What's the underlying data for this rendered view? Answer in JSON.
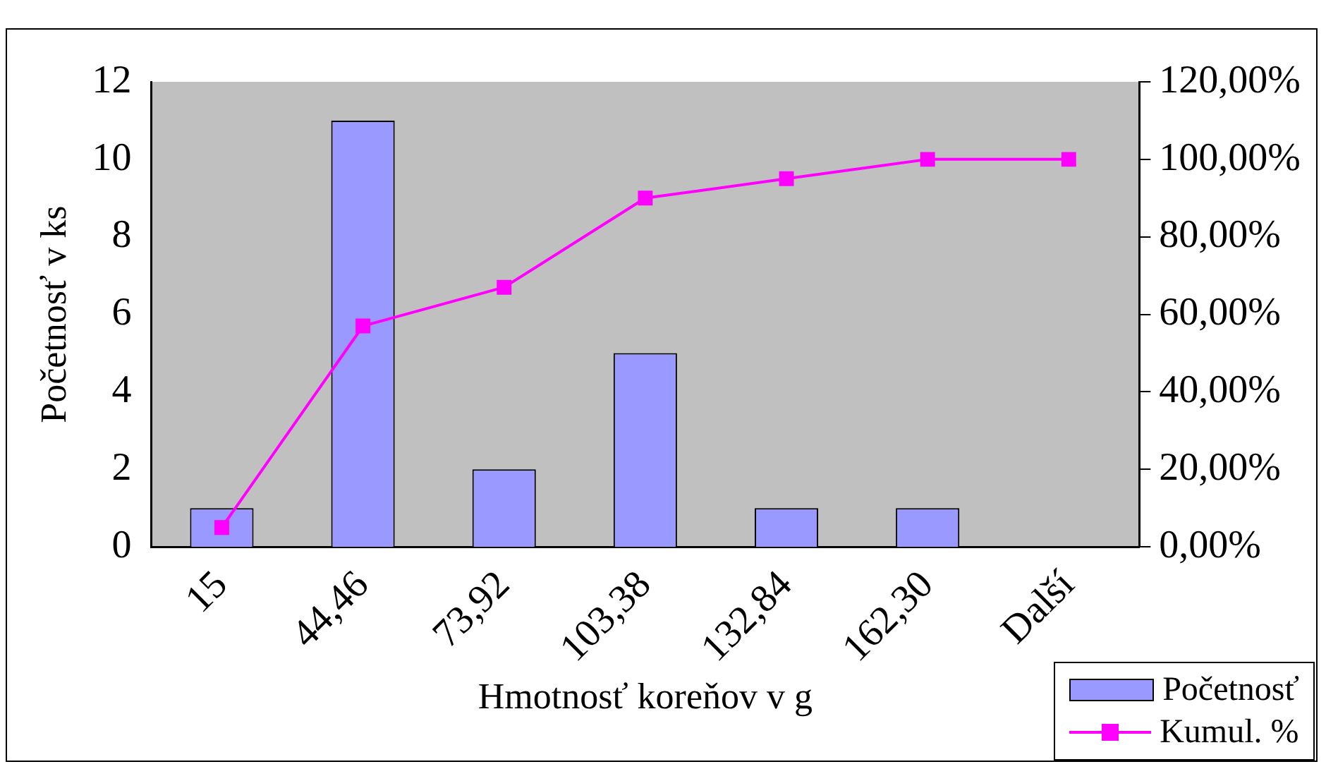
{
  "chart_data": {
    "type": "bar",
    "xlabel": "Hmotnosť koreňov v g",
    "ylabel": "Početnosť v ks",
    "categories": [
      "15",
      "44,46",
      "73,92",
      "103,38",
      "132,84",
      "162,30",
      "Další"
    ],
    "series": [
      {
        "name": "Početnosť",
        "color": "#9999ff",
        "values": [
          1,
          11,
          2,
          5,
          1,
          1,
          0
        ]
      },
      {
        "name": "Kumul. %",
        "type": "line",
        "axis": "y2",
        "color": "#ff00ff",
        "marker": "square",
        "values": [
          5,
          57,
          67,
          90,
          95,
          100,
          100
        ]
      }
    ],
    "ylim": [
      0,
      12
    ],
    "yticks": [
      0,
      2,
      4,
      6,
      8,
      10,
      12
    ],
    "y2lim": [
      0,
      120
    ],
    "y2ticks": [
      {
        "value": 0,
        "label": "0,00%"
      },
      {
        "value": 20,
        "label": "20,00%"
      },
      {
        "value": 40,
        "label": "40,00%"
      },
      {
        "value": 60,
        "label": "60,00%"
      },
      {
        "value": 80,
        "label": "80,00%"
      },
      {
        "value": 100,
        "label": "100,00%"
      },
      {
        "value": 120,
        "label": "120,00%"
      }
    ],
    "grid": false,
    "legend": "bottom right"
  }
}
